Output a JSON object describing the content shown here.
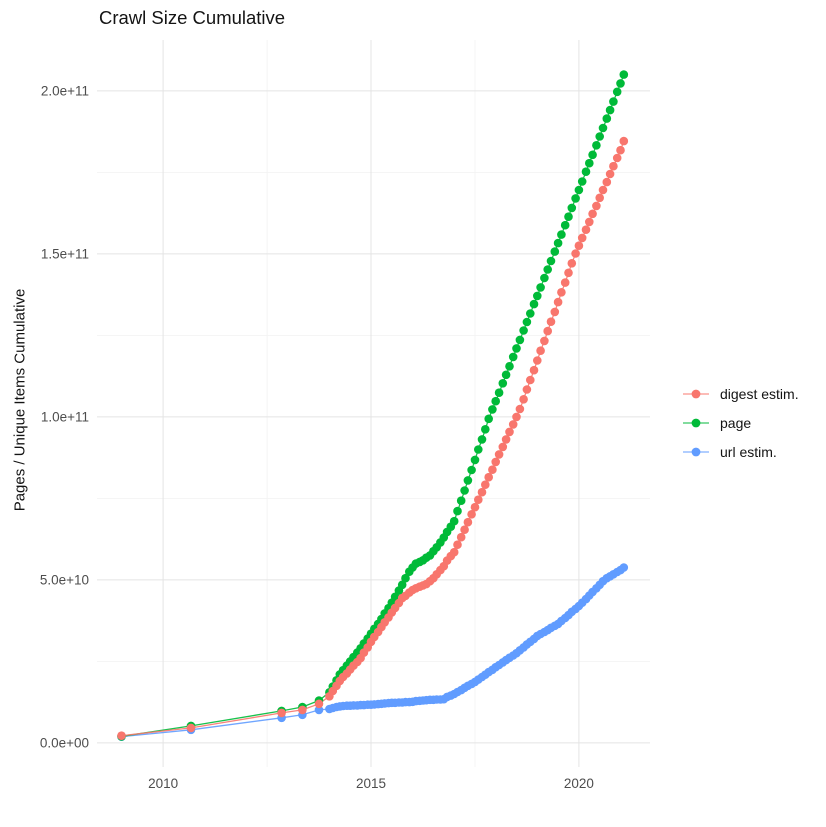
{
  "title": "Crawl Size Cumulative",
  "axes": {
    "y_label": "Pages / Unique Items Cumulative",
    "x_label": "",
    "x_tick_labels": [
      "2010",
      "2015",
      "2020"
    ],
    "y_tick_labels": [
      "0.0e+00",
      "5.0e+10",
      "1.0e+11",
      "1.5e+11",
      "2.0e+11"
    ]
  },
  "legend": {
    "position": "right",
    "items": [
      {
        "label": "digest estim.",
        "color": "#F8766D"
      },
      {
        "label": "page",
        "color": "#00BA38"
      },
      {
        "label": "url estim.",
        "color": "#619CFF"
      }
    ]
  },
  "colors": {
    "background": "#ffffff",
    "grid_major": "#e4e4e4",
    "grid_minor": "#f2f2f2",
    "tick_text": "#4d4d4d",
    "title_text": "#141414"
  },
  "chart_data": {
    "type": "scatter",
    "title": "Crawl Size Cumulative",
    "xlabel": "",
    "ylabel": "Pages / Unique Items Cumulative",
    "x_unit": "year (decimal)",
    "values_unit": "billions of items (1e9)",
    "x_range": [
      2008.41,
      2021.71
    ],
    "y_range_e9": [
      -7.4,
      215.6
    ],
    "x_major_ticks": [
      2010,
      2015,
      2020
    ],
    "x_minor_ticks": [
      2012.5,
      2017.5
    ],
    "y_major_ticks_e9": [
      0,
      50,
      100,
      150,
      200
    ],
    "y_minor_ticks_e9": [
      25,
      75,
      125,
      175
    ],
    "grid": true,
    "legend_position": "right",
    "marker": "circle-with-line",
    "series": [
      {
        "name": "digest estim.",
        "color": "#F8766D",
        "points": [
          [
            2009.0,
            2.2
          ],
          [
            2010.67,
            4.6
          ],
          [
            2012.85,
            9.2
          ],
          [
            2013.35,
            10.1
          ],
          [
            2013.75,
            12.0
          ],
          [
            2014.0,
            14.3
          ],
          [
            2014.08,
            15.9
          ],
          [
            2014.17,
            17.5
          ],
          [
            2014.25,
            19.0
          ],
          [
            2014.33,
            20.2
          ],
          [
            2014.42,
            21.3
          ],
          [
            2014.5,
            22.5
          ],
          [
            2014.58,
            23.7
          ],
          [
            2014.67,
            24.8
          ],
          [
            2014.75,
            26.0
          ],
          [
            2014.83,
            27.7
          ],
          [
            2014.92,
            29.3
          ],
          [
            2015.0,
            31.0
          ],
          [
            2015.08,
            32.5
          ],
          [
            2015.17,
            34.0
          ],
          [
            2015.25,
            35.5
          ],
          [
            2015.33,
            37.0
          ],
          [
            2015.42,
            38.5
          ],
          [
            2015.5,
            40.0
          ],
          [
            2015.58,
            41.4
          ],
          [
            2015.67,
            42.9
          ],
          [
            2015.75,
            44.4
          ],
          [
            2015.83,
            45.1
          ],
          [
            2015.92,
            46.1
          ],
          [
            2016.0,
            46.9
          ],
          [
            2016.08,
            47.4
          ],
          [
            2016.17,
            47.9
          ],
          [
            2016.25,
            48.3
          ],
          [
            2016.33,
            48.7
          ],
          [
            2016.42,
            49.6
          ],
          [
            2016.5,
            50.5
          ],
          [
            2016.58,
            51.7
          ],
          [
            2016.67,
            53.0
          ],
          [
            2016.75,
            54.2
          ],
          [
            2016.83,
            55.9
          ],
          [
            2016.92,
            57.3
          ],
          [
            2017.0,
            58.5
          ],
          [
            2017.08,
            60.8
          ],
          [
            2017.17,
            63.1
          ],
          [
            2017.25,
            65.4
          ],
          [
            2017.33,
            67.7
          ],
          [
            2017.42,
            70.1
          ],
          [
            2017.5,
            72.3
          ],
          [
            2017.58,
            74.6
          ],
          [
            2017.67,
            76.9
          ],
          [
            2017.75,
            79.2
          ],
          [
            2017.83,
            81.5
          ],
          [
            2017.92,
            83.8
          ],
          [
            2018.0,
            86.2
          ],
          [
            2018.08,
            88.5
          ],
          [
            2018.17,
            90.8
          ],
          [
            2018.25,
            93.1
          ],
          [
            2018.33,
            95.4
          ],
          [
            2018.42,
            97.7
          ],
          [
            2018.5,
            100.0
          ],
          [
            2018.58,
            102.4
          ],
          [
            2018.67,
            105.4
          ],
          [
            2018.75,
            108.4
          ],
          [
            2018.83,
            111.3
          ],
          [
            2018.92,
            114.3
          ],
          [
            2019.0,
            117.3
          ],
          [
            2019.08,
            120.3
          ],
          [
            2019.17,
            123.3
          ],
          [
            2019.25,
            126.3
          ],
          [
            2019.33,
            129.2
          ],
          [
            2019.42,
            132.2
          ],
          [
            2019.5,
            135.2
          ],
          [
            2019.58,
            138.2
          ],
          [
            2019.67,
            141.2
          ],
          [
            2019.75,
            144.2
          ],
          [
            2019.83,
            147.1
          ],
          [
            2019.92,
            150.1
          ],
          [
            2020.0,
            152.5
          ],
          [
            2020.08,
            154.9
          ],
          [
            2020.17,
            157.4
          ],
          [
            2020.25,
            159.8
          ],
          [
            2020.33,
            162.3
          ],
          [
            2020.42,
            164.7
          ],
          [
            2020.5,
            167.2
          ],
          [
            2020.58,
            169.6
          ],
          [
            2020.67,
            172.0
          ],
          [
            2020.75,
            174.5
          ],
          [
            2020.83,
            176.9
          ],
          [
            2020.92,
            179.4
          ],
          [
            2021.0,
            181.8
          ],
          [
            2021.08,
            184.6
          ]
        ]
      },
      {
        "name": "page",
        "color": "#00BA38",
        "points": [
          [
            2009.0,
            2.0
          ],
          [
            2010.67,
            5.2
          ],
          [
            2012.85,
            9.8
          ],
          [
            2013.35,
            11.0
          ],
          [
            2013.75,
            13.0
          ],
          [
            2014.0,
            15.5
          ],
          [
            2014.08,
            17.3
          ],
          [
            2014.17,
            19.2
          ],
          [
            2014.25,
            21.0
          ],
          [
            2014.33,
            22.3
          ],
          [
            2014.42,
            23.7
          ],
          [
            2014.5,
            25.0
          ],
          [
            2014.58,
            26.3
          ],
          [
            2014.67,
            27.7
          ],
          [
            2014.75,
            29.0
          ],
          [
            2014.83,
            30.5
          ],
          [
            2014.92,
            32.0
          ],
          [
            2015.0,
            33.5
          ],
          [
            2015.08,
            35.0
          ],
          [
            2015.17,
            36.5
          ],
          [
            2015.25,
            38.0
          ],
          [
            2015.33,
            39.7
          ],
          [
            2015.42,
            41.3
          ],
          [
            2015.5,
            43.0
          ],
          [
            2015.58,
            44.8
          ],
          [
            2015.67,
            46.7
          ],
          [
            2015.75,
            48.5
          ],
          [
            2015.83,
            50.5
          ],
          [
            2015.92,
            52.5
          ],
          [
            2016.0,
            53.8
          ],
          [
            2016.08,
            55.0
          ],
          [
            2016.17,
            55.5
          ],
          [
            2016.25,
            56.0
          ],
          [
            2016.33,
            56.8
          ],
          [
            2016.42,
            57.5
          ],
          [
            2016.5,
            58.8
          ],
          [
            2016.58,
            60.0
          ],
          [
            2016.67,
            61.5
          ],
          [
            2016.75,
            63.0
          ],
          [
            2016.83,
            64.7
          ],
          [
            2016.92,
            66.3
          ],
          [
            2017.0,
            68.0
          ],
          [
            2017.08,
            71.1
          ],
          [
            2017.17,
            74.3
          ],
          [
            2017.25,
            77.4
          ],
          [
            2017.33,
            80.5
          ],
          [
            2017.42,
            83.7
          ],
          [
            2017.5,
            86.8
          ],
          [
            2017.58,
            90.0
          ],
          [
            2017.67,
            93.1
          ],
          [
            2017.75,
            96.2
          ],
          [
            2017.83,
            99.4
          ],
          [
            2017.92,
            102.3
          ],
          [
            2018.0,
            104.8
          ],
          [
            2018.08,
            107.4
          ],
          [
            2018.17,
            110.3
          ],
          [
            2018.25,
            112.9
          ],
          [
            2018.33,
            115.5
          ],
          [
            2018.42,
            118.4
          ],
          [
            2018.5,
            121.0
          ],
          [
            2018.58,
            123.6
          ],
          [
            2018.67,
            126.5
          ],
          [
            2018.75,
            129.1
          ],
          [
            2018.83,
            131.7
          ],
          [
            2018.92,
            134.6
          ],
          [
            2019.0,
            137.1
          ],
          [
            2019.08,
            139.7
          ],
          [
            2019.17,
            142.6
          ],
          [
            2019.25,
            145.2
          ],
          [
            2019.33,
            147.8
          ],
          [
            2019.42,
            150.7
          ],
          [
            2019.5,
            153.3
          ],
          [
            2019.58,
            155.9
          ],
          [
            2019.67,
            158.8
          ],
          [
            2019.75,
            161.4
          ],
          [
            2019.83,
            164.1
          ],
          [
            2019.92,
            167.0
          ],
          [
            2020.0,
            169.6
          ],
          [
            2020.08,
            172.2
          ],
          [
            2020.17,
            175.2
          ],
          [
            2020.25,
            177.8
          ],
          [
            2020.33,
            180.4
          ],
          [
            2020.42,
            183.3
          ],
          [
            2020.5,
            186.0
          ],
          [
            2020.58,
            188.6
          ],
          [
            2020.67,
            191.5
          ],
          [
            2020.75,
            194.1
          ],
          [
            2020.83,
            196.7
          ],
          [
            2020.92,
            199.7
          ],
          [
            2021.0,
            202.3
          ],
          [
            2021.08,
            205.0
          ]
        ]
      },
      {
        "name": "url estim.",
        "color": "#619CFF",
        "points": [
          [
            2009.0,
            1.9
          ],
          [
            2010.67,
            4.0
          ],
          [
            2012.85,
            7.7
          ],
          [
            2013.35,
            8.6
          ],
          [
            2013.75,
            10.1
          ],
          [
            2014.0,
            10.4
          ],
          [
            2014.08,
            10.7
          ],
          [
            2014.17,
            11.0
          ],
          [
            2014.25,
            11.2
          ],
          [
            2014.33,
            11.3
          ],
          [
            2014.42,
            11.4
          ],
          [
            2014.5,
            11.4
          ],
          [
            2014.58,
            11.5
          ],
          [
            2014.67,
            11.5
          ],
          [
            2014.75,
            11.6
          ],
          [
            2014.83,
            11.6
          ],
          [
            2014.92,
            11.7
          ],
          [
            2015.0,
            11.7
          ],
          [
            2015.08,
            11.8
          ],
          [
            2015.17,
            11.9
          ],
          [
            2015.25,
            12.0
          ],
          [
            2015.33,
            12.1
          ],
          [
            2015.42,
            12.2
          ],
          [
            2015.5,
            12.3
          ],
          [
            2015.58,
            12.3
          ],
          [
            2015.67,
            12.4
          ],
          [
            2015.75,
            12.4
          ],
          [
            2015.83,
            12.5
          ],
          [
            2015.92,
            12.5
          ],
          [
            2016.0,
            12.6
          ],
          [
            2016.08,
            12.8
          ],
          [
            2016.17,
            12.9
          ],
          [
            2016.25,
            13.0
          ],
          [
            2016.33,
            13.1
          ],
          [
            2016.42,
            13.2
          ],
          [
            2016.5,
            13.2
          ],
          [
            2016.58,
            13.3
          ],
          [
            2016.67,
            13.3
          ],
          [
            2016.75,
            13.4
          ],
          [
            2016.83,
            14.1
          ],
          [
            2016.92,
            14.5
          ],
          [
            2017.0,
            15.0
          ],
          [
            2017.08,
            15.6
          ],
          [
            2017.17,
            16.2
          ],
          [
            2017.25,
            16.9
          ],
          [
            2017.33,
            17.5
          ],
          [
            2017.42,
            18.1
          ],
          [
            2017.5,
            18.7
          ],
          [
            2017.58,
            19.4
          ],
          [
            2017.67,
            20.2
          ],
          [
            2017.75,
            20.9
          ],
          [
            2017.83,
            21.7
          ],
          [
            2017.92,
            22.4
          ],
          [
            2018.0,
            23.2
          ],
          [
            2018.08,
            23.9
          ],
          [
            2018.17,
            24.7
          ],
          [
            2018.25,
            25.4
          ],
          [
            2018.33,
            26.1
          ],
          [
            2018.42,
            26.8
          ],
          [
            2018.5,
            27.5
          ],
          [
            2018.58,
            28.4
          ],
          [
            2018.67,
            29.3
          ],
          [
            2018.75,
            30.2
          ],
          [
            2018.83,
            31.0
          ],
          [
            2018.92,
            31.9
          ],
          [
            2019.0,
            32.8
          ],
          [
            2019.08,
            33.4
          ],
          [
            2019.17,
            34.0
          ],
          [
            2019.25,
            34.6
          ],
          [
            2019.33,
            35.3
          ],
          [
            2019.42,
            35.9
          ],
          [
            2019.5,
            36.5
          ],
          [
            2019.58,
            37.4
          ],
          [
            2019.67,
            38.3
          ],
          [
            2019.75,
            39.2
          ],
          [
            2019.83,
            40.2
          ],
          [
            2019.92,
            41.1
          ],
          [
            2020.0,
            42.0
          ],
          [
            2020.08,
            43.0
          ],
          [
            2020.17,
            44.1
          ],
          [
            2020.25,
            45.2
          ],
          [
            2020.33,
            46.3
          ],
          [
            2020.42,
            47.4
          ],
          [
            2020.5,
            48.5
          ],
          [
            2020.58,
            49.6
          ],
          [
            2020.67,
            50.5
          ],
          [
            2020.75,
            51.1
          ],
          [
            2020.83,
            51.7
          ],
          [
            2020.92,
            52.4
          ],
          [
            2021.0,
            53.0
          ],
          [
            2021.08,
            53.8
          ]
        ]
      }
    ]
  }
}
